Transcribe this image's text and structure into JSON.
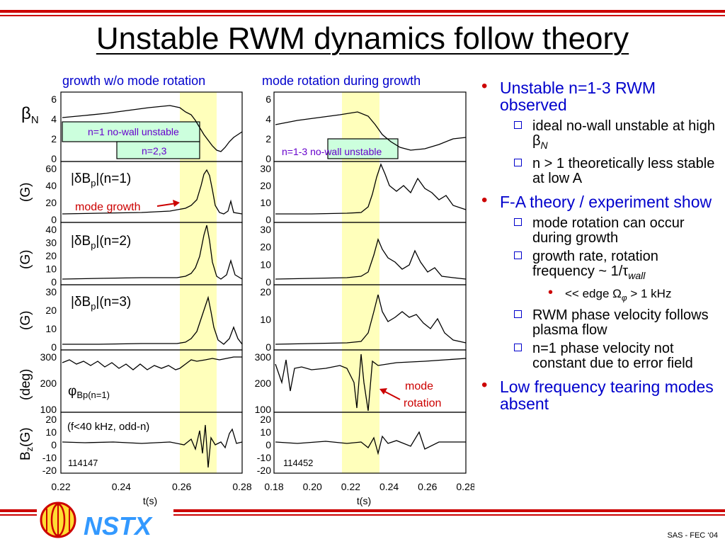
{
  "title": "Unstable RWM dynamics follow theory",
  "columns": [
    {
      "title": "growth w/o mode rotation",
      "shot": "114147"
    },
    {
      "title": "mode rotation during growth",
      "shot": "114452"
    }
  ],
  "row_labels": [
    "β",
    "N",
    "(G)",
    "(G)",
    "(G)",
    "(deg)",
    "B",
    "z",
    "(G)"
  ],
  "panel_labels": {
    "no_wall_n1": "n=1 no-wall unstable",
    "no_wall_n23": "n=2,3",
    "no_wall_n13": "n=1-3 no-wall unstable",
    "dbp_prefix": "|δB",
    "dbp_sub": "p",
    "dbp_n1": "|(n=1)",
    "dbp_n2": "|(n=2)",
    "dbp_n3": "|(n=3)",
    "phi": "φ",
    "phi_sub": "Bp(n=1)",
    "filter_note": "(f<40 kHz, odd-n)",
    "mode_growth": "mode growth",
    "mode_rotation_1": "mode",
    "mode_rotation_2": "rotation"
  },
  "axes": {
    "left_x_ticks": [
      "0.22",
      "0.24",
      "0.26",
      "0.28"
    ],
    "right_x_ticks": [
      "0.18",
      "0.20",
      "0.22",
      "0.24",
      "0.26",
      "0.28"
    ],
    "x_label": "t(s)",
    "left_y": [
      [
        "6",
        "4",
        "2",
        "0"
      ],
      [
        "60",
        "40",
        "20",
        "0"
      ],
      [
        "40",
        "30",
        "20",
        "10",
        "0"
      ],
      [
        "30",
        "20",
        "10",
        "0"
      ],
      [
        "300",
        "200",
        "100"
      ],
      [
        "20",
        "10",
        "0",
        "-10",
        "-20"
      ]
    ],
    "right_y": [
      [
        "6",
        "4",
        "2",
        "0"
      ],
      [
        "30",
        "20",
        "10",
        "0"
      ],
      [
        "30",
        "20",
        "10",
        "0"
      ],
      [
        "20",
        "10",
        "0"
      ],
      [
        "300",
        "200",
        "100"
      ],
      [
        "20",
        "10",
        "0",
        "-10",
        "-20"
      ]
    ]
  },
  "colors": {
    "accent_red": "#cc0000",
    "blue_text": "#0000cc",
    "highlight": "#ffffbb",
    "box_green": "#ccffdd",
    "purple_label": "#6600cc",
    "nstx_blue": "#3399ff"
  },
  "bullets": [
    {
      "text": "Unstable n=1-3 RWM observed",
      "level": 1
    },
    {
      "text": "ideal no-wall unstable at high β",
      "sub": "N",
      "level": 2
    },
    {
      "text": "n > 1 theoretically less stable at low A",
      "level": 2
    },
    {
      "text": "F-A theory / experiment show",
      "level": 1
    },
    {
      "text": "mode rotation can occur during growth",
      "level": 2
    },
    {
      "text": "growth rate, rotation frequency ~ 1/τ",
      "sub": "wall",
      "level": 2
    },
    {
      "text": "<< edge Ω",
      "sub": "φ",
      "after": " > 1 kHz",
      "level": 3
    },
    {
      "text": "RWM phase velocity follows plasma flow",
      "level": 2
    },
    {
      "text": "n=1 phase velocity not constant due to error field",
      "level": 2
    },
    {
      "text": "Low frequency tearing modes absent",
      "level": 1
    }
  ],
  "footer": {
    "logo_text": "NSTX",
    "credit": "SAS - FEC ‘04"
  }
}
